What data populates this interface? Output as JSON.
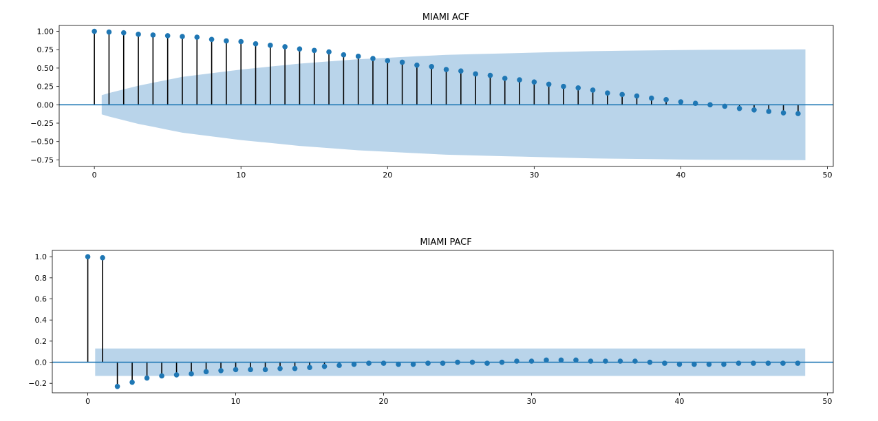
{
  "chart_data": [
    {
      "type": "stem",
      "title": "MIAMI ACF",
      "xlabel": "",
      "ylabel": "",
      "xlim": [
        -2.4,
        50.4
      ],
      "ylim": [
        -0.84,
        1.08
      ],
      "xticks": [
        0,
        10,
        20,
        30,
        40,
        50
      ],
      "xtick_labels": [
        "0",
        "10",
        "20",
        "30",
        "40",
        "50"
      ],
      "yticks": [
        1.0,
        0.75,
        0.5,
        0.25,
        0.0,
        -0.25,
        -0.5,
        -0.75
      ],
      "ytick_labels": [
        "1.00",
        "0.75",
        "0.50",
        "0.25",
        "0.00",
        "−0.25",
        "−0.50",
        "−0.75"
      ],
      "grid": false,
      "stem_color": "#000000",
      "marker_color": "#1f77b4",
      "band_color": "#b9d4ea",
      "zero_line_color": "#1f77b4",
      "lags": [
        0,
        1,
        2,
        3,
        4,
        5,
        6,
        7,
        8,
        9,
        10,
        11,
        12,
        13,
        14,
        15,
        16,
        17,
        18,
        19,
        20,
        21,
        22,
        23,
        24,
        25,
        26,
        27,
        28,
        29,
        30,
        31,
        32,
        33,
        34,
        35,
        36,
        37,
        38,
        39,
        40,
        41,
        42,
        43,
        44,
        45,
        46,
        47,
        48
      ],
      "values": [
        1.0,
        0.99,
        0.98,
        0.96,
        0.95,
        0.94,
        0.93,
        0.92,
        0.89,
        0.87,
        0.86,
        0.83,
        0.81,
        0.79,
        0.76,
        0.74,
        0.72,
        0.68,
        0.66,
        0.63,
        0.6,
        0.58,
        0.54,
        0.52,
        0.48,
        0.46,
        0.42,
        0.4,
        0.36,
        0.34,
        0.31,
        0.28,
        0.25,
        0.23,
        0.2,
        0.16,
        0.14,
        0.12,
        0.09,
        0.07,
        0.04,
        0.02,
        0.0,
        -0.02,
        -0.05,
        -0.07,
        -0.09,
        -0.11,
        -0.12
      ],
      "confidence_band": {
        "lags": [
          0.5,
          1,
          2,
          3,
          4,
          5,
          6,
          8,
          10,
          12,
          14,
          16,
          18,
          20,
          22,
          24,
          26,
          28,
          30,
          32,
          34,
          36,
          38,
          40,
          42,
          44,
          46,
          48,
          48.5
        ],
        "upper": [
          0.13,
          0.16,
          0.21,
          0.26,
          0.3,
          0.34,
          0.38,
          0.43,
          0.48,
          0.52,
          0.56,
          0.59,
          0.62,
          0.64,
          0.66,
          0.68,
          0.69,
          0.7,
          0.71,
          0.72,
          0.73,
          0.735,
          0.74,
          0.745,
          0.748,
          0.75,
          0.752,
          0.754,
          0.755
        ]
      }
    },
    {
      "type": "stem",
      "title": "MIAMI PACF",
      "xlabel": "",
      "ylabel": "",
      "xlim": [
        -2.4,
        50.4
      ],
      "ylim": [
        -0.29,
        1.06
      ],
      "xticks": [
        0,
        10,
        20,
        30,
        40,
        50
      ],
      "xtick_labels": [
        "0",
        "10",
        "20",
        "30",
        "40",
        "50"
      ],
      "yticks": [
        1.0,
        0.8,
        0.6,
        0.4,
        0.2,
        0.0,
        -0.2
      ],
      "ytick_labels": [
        "1.0",
        "0.8",
        "0.6",
        "0.4",
        "0.2",
        "0.0",
        "−0.2"
      ],
      "grid": false,
      "stem_color": "#000000",
      "marker_color": "#1f77b4",
      "band_color": "#b9d4ea",
      "zero_line_color": "#1f77b4",
      "lags": [
        0,
        1,
        2,
        3,
        4,
        5,
        6,
        7,
        8,
        9,
        10,
        11,
        12,
        13,
        14,
        15,
        16,
        17,
        18,
        19,
        20,
        21,
        22,
        23,
        24,
        25,
        26,
        27,
        28,
        29,
        30,
        31,
        32,
        33,
        34,
        35,
        36,
        37,
        38,
        39,
        40,
        41,
        42,
        43,
        44,
        45,
        46,
        47,
        48
      ],
      "values": [
        1.0,
        0.99,
        -0.23,
        -0.19,
        -0.15,
        -0.13,
        -0.12,
        -0.11,
        -0.09,
        -0.08,
        -0.07,
        -0.07,
        -0.07,
        -0.06,
        -0.06,
        -0.05,
        -0.04,
        -0.03,
        -0.02,
        -0.01,
        -0.01,
        -0.02,
        -0.02,
        -0.01,
        -0.01,
        0.0,
        0.0,
        -0.01,
        0.0,
        0.01,
        0.01,
        0.02,
        0.02,
        0.02,
        0.01,
        0.01,
        0.01,
        0.01,
        0.0,
        -0.01,
        -0.02,
        -0.02,
        -0.02,
        -0.02,
        -0.01,
        -0.01,
        -0.01,
        -0.01,
        -0.01
      ],
      "confidence_band": {
        "lags": [
          0.5,
          48.5
        ],
        "upper": [
          0.13,
          0.13
        ]
      }
    }
  ]
}
